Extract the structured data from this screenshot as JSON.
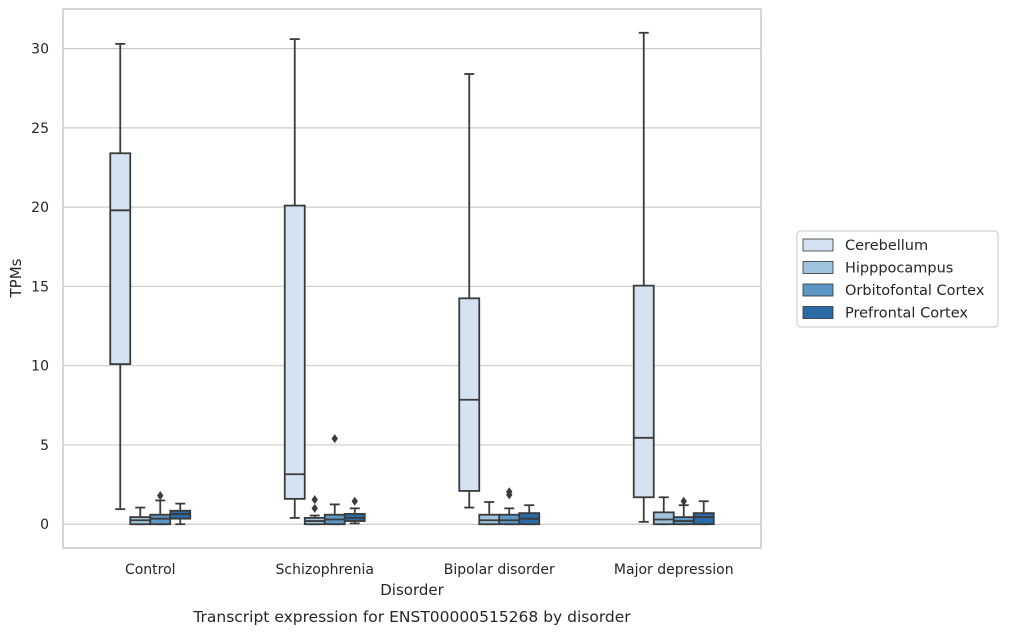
{
  "caption": "Transcript expression for ENST00000515268 by disorder",
  "chart_data": {
    "type": "box",
    "xlabel": "Disorder",
    "ylabel": "TPMs",
    "categories": [
      "Control",
      "Schizophrenia",
      "Bipolar disorder",
      "Major depression"
    ],
    "ylim": [
      -1.5,
      32.5
    ],
    "yticks": [
      0,
      5,
      10,
      15,
      20,
      25,
      30
    ],
    "grid": "horizontal",
    "legend_position": "right",
    "series": [
      {
        "name": "Cerebellum",
        "color": "#d4e2f1",
        "boxes": [
          {
            "whisker_low": 0.95,
            "q1": 10.1,
            "median": 19.8,
            "q3": 23.4,
            "whisker_high": 30.3,
            "outliers": []
          },
          {
            "whisker_low": 0.4,
            "q1": 1.6,
            "median": 3.15,
            "q3": 20.1,
            "whisker_high": 30.6,
            "outliers": []
          },
          {
            "whisker_low": 1.05,
            "q1": 2.1,
            "median": 7.85,
            "q3": 14.25,
            "whisker_high": 28.4,
            "outliers": []
          },
          {
            "whisker_low": 0.15,
            "q1": 1.7,
            "median": 5.45,
            "q3": 15.05,
            "whisker_high": 31.0,
            "outliers": []
          }
        ]
      },
      {
        "name": "Hipppocampus",
        "color": "#9ec4de",
        "boxes": [
          {
            "whisker_low": 0.0,
            "q1": 0.0,
            "median": 0.25,
            "q3": 0.45,
            "whisker_high": 1.05,
            "outliers": []
          },
          {
            "whisker_low": 0.0,
            "q1": 0.0,
            "median": 0.2,
            "q3": 0.4,
            "whisker_high": 0.55,
            "outliers": [
              1.0,
              1.55
            ]
          },
          {
            "whisker_low": 0.0,
            "q1": 0.0,
            "median": 0.25,
            "q3": 0.6,
            "whisker_high": 1.4,
            "outliers": []
          },
          {
            "whisker_low": 0.0,
            "q1": 0.0,
            "median": 0.3,
            "q3": 0.75,
            "whisker_high": 1.7,
            "outliers": []
          }
        ]
      },
      {
        "name": "Orbitofontal Cortex",
        "color": "#5c98c6",
        "boxes": [
          {
            "whisker_low": 0.0,
            "q1": 0.0,
            "median": 0.35,
            "q3": 0.6,
            "whisker_high": 1.5,
            "outliers": [
              1.8
            ]
          },
          {
            "whisker_low": 0.0,
            "q1": 0.0,
            "median": 0.3,
            "q3": 0.6,
            "whisker_high": 1.25,
            "outliers": [
              5.4
            ]
          },
          {
            "whisker_low": 0.0,
            "q1": 0.0,
            "median": 0.25,
            "q3": 0.6,
            "whisker_high": 1.0,
            "outliers": [
              1.85,
              2.05
            ]
          },
          {
            "whisker_low": 0.0,
            "q1": 0.0,
            "median": 0.2,
            "q3": 0.45,
            "whisker_high": 1.2,
            "outliers": [
              1.45
            ]
          }
        ]
      },
      {
        "name": "Prefrontal Cortex",
        "color": "#2a6aa7",
        "boxes": [
          {
            "whisker_low": 0.0,
            "q1": 0.35,
            "median": 0.65,
            "q3": 0.85,
            "whisker_high": 1.3,
            "outliers": []
          },
          {
            "whisker_low": 0.05,
            "q1": 0.2,
            "median": 0.4,
            "q3": 0.65,
            "whisker_high": 1.0,
            "outliers": [
              1.45
            ]
          },
          {
            "whisker_low": 0.0,
            "q1": 0.0,
            "median": 0.35,
            "q3": 0.7,
            "whisker_high": 1.2,
            "outliers": []
          },
          {
            "whisker_low": 0.0,
            "q1": 0.0,
            "median": 0.45,
            "q3": 0.7,
            "whisker_high": 1.45,
            "outliers": []
          }
        ]
      }
    ]
  }
}
